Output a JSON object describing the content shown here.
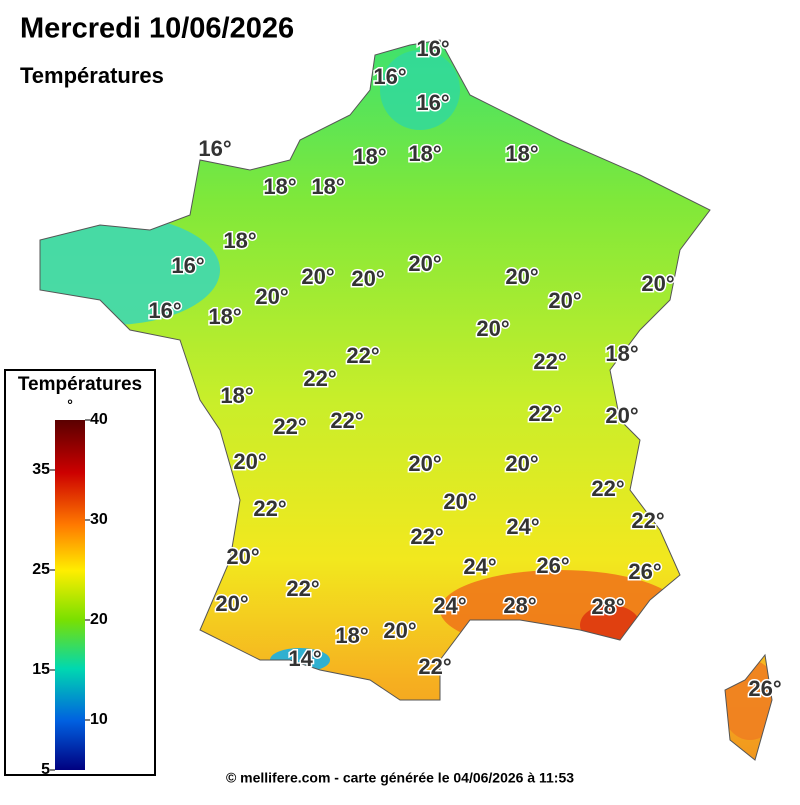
{
  "title": "Mercredi 10/06/2026",
  "subtitle": "Températures",
  "labels": [
    "16°",
    "16°",
    "16°",
    "16°",
    "18°",
    "18°",
    "18°",
    "18°",
    "18°",
    "18°",
    "20°",
    "16°",
    "20°",
    "20°",
    "20°",
    "20°",
    "20°",
    "20°",
    "16°",
    "18°",
    "20°",
    "22°",
    "22°",
    "18°",
    "22°",
    "18°",
    "22°",
    "22°",
    "22°",
    "20°",
    "20°",
    "20°",
    "20°",
    "22°",
    "20°",
    "22°",
    "24°",
    "22°",
    "22°",
    "20°",
    "24°",
    "26°",
    "26°",
    "22°",
    "20°",
    "24°",
    "28°",
    "28°",
    "18°",
    "20°",
    "14°",
    "22°",
    "26°"
  ],
  "legend": {
    "title": "Températures",
    "unit": "°",
    "lim": [
      5,
      40
    ],
    "ticks": [
      5,
      10,
      15,
      20,
      25,
      30,
      35,
      40
    ]
  },
  "footer": "© mellifere.com - carte générée le 04/06/2026 à 11:53"
}
